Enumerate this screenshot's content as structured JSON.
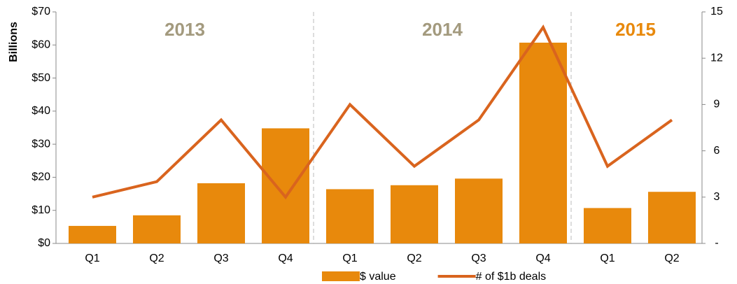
{
  "chart_data": {
    "type": "bar+line",
    "y_axis_label": "Billions",
    "categories": [
      "Q1",
      "Q2",
      "Q3",
      "Q4",
      "Q1",
      "Q2",
      "Q3",
      "Q4",
      "Q1",
      "Q2"
    ],
    "groups": [
      {
        "label": "2013",
        "color": "#a39a7e"
      },
      {
        "label": "2014",
        "color": "#a39a7e"
      },
      {
        "label": "2015",
        "color": "#e8890c"
      }
    ],
    "series": [
      {
        "name": "$ value",
        "type": "bar",
        "color": "#e8890c",
        "values": [
          5.3,
          8.5,
          18.2,
          34.8,
          16.4,
          17.6,
          19.6,
          60.7,
          10.7,
          15.6
        ]
      },
      {
        "name": "# of $1b deals",
        "type": "line",
        "axis": "y2",
        "color": "#d9641e",
        "values": [
          3,
          4,
          8,
          3,
          9,
          5,
          8,
          14,
          5,
          8
        ]
      }
    ],
    "ylim": [
      0,
      70
    ],
    "yticks": [
      {
        "value": 0,
        "label": "$0"
      },
      {
        "value": 10,
        "label": "$10"
      },
      {
        "value": 20,
        "label": "$20"
      },
      {
        "value": 30,
        "label": "$30"
      },
      {
        "value": 40,
        "label": "$40"
      },
      {
        "value": 50,
        "label": "$50"
      },
      {
        "value": 60,
        "label": "$60"
      },
      {
        "value": 70,
        "label": "$70"
      }
    ],
    "y2lim": [
      0,
      15
    ],
    "y2ticks": [
      {
        "value": 0,
        "label": "-"
      },
      3,
      6,
      9,
      12,
      15
    ],
    "legend": "bottom"
  }
}
